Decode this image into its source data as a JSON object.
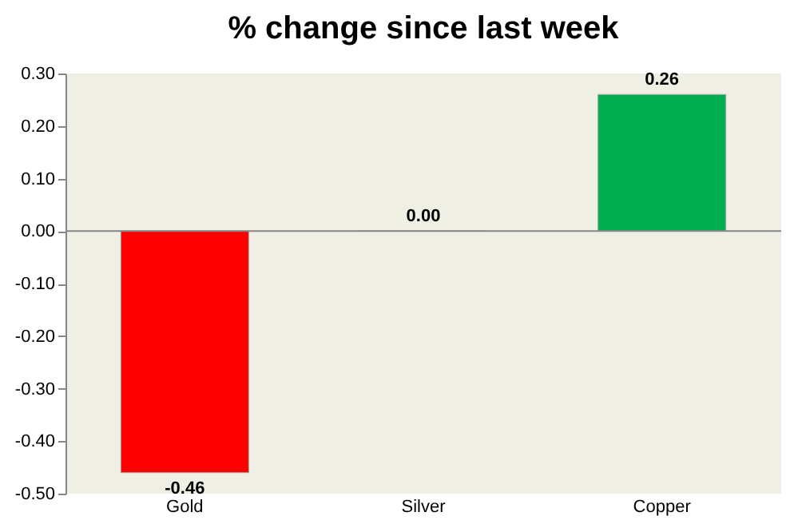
{
  "chart_data": {
    "type": "bar",
    "title": "% change since last week",
    "categories": [
      "Gold",
      "Silver",
      "Copper"
    ],
    "values": [
      -0.46,
      0.0,
      0.26
    ],
    "colors": [
      "#ff0000",
      "#a6a6a6",
      "#00b050"
    ],
    "value_labels": [
      "-0.46",
      "0.00",
      "0.26"
    ],
    "ylim": [
      -0.5,
      0.3
    ],
    "yticks": [
      {
        "value": 0.3,
        "label": "0.30"
      },
      {
        "value": 0.2,
        "label": "0.20"
      },
      {
        "value": 0.1,
        "label": "0.10"
      },
      {
        "value": 0.0,
        "label": "0.00"
      },
      {
        "value": -0.1,
        "label": "-0.10"
      },
      {
        "value": -0.2,
        "label": "-0.20"
      },
      {
        "value": -0.3,
        "label": "-0.30"
      },
      {
        "value": -0.4,
        "label": "-0.40"
      },
      {
        "value": -0.5,
        "label": "-0.50"
      }
    ],
    "ref_lines": [
      {
        "axis": "y",
        "value": 0,
        "color": "#868686"
      }
    ],
    "grid": false
  }
}
